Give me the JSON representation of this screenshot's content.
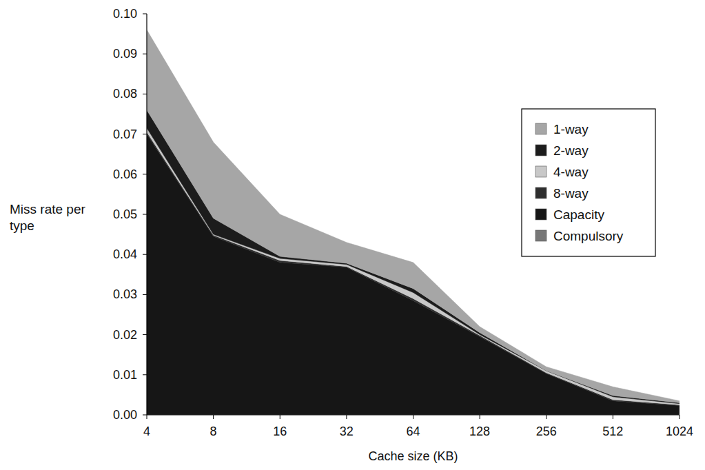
{
  "chart_data": {
    "type": "area",
    "stacked": true,
    "x_label": "Cache size (KB)",
    "y_label": "Miss rate per type",
    "categories": [
      "4",
      "8",
      "16",
      "32",
      "64",
      "128",
      "256",
      "512",
      "1024"
    ],
    "series": [
      {
        "name": "1-way",
        "color": "#a6a6a6",
        "values": [
          0.02,
          0.019,
          0.0105,
          0.0052,
          0.0065,
          0.0015,
          0.001,
          0.0022,
          0.0005
        ]
      },
      {
        "name": "2-way",
        "color": "#1c1c1c",
        "values": [
          0.0045,
          0.004,
          0.0005,
          0.0003,
          0.001,
          0.0005,
          0.0,
          0.0003,
          0.0002
        ]
      },
      {
        "name": "4-way",
        "color": "#c8c8c8",
        "values": [
          0.001,
          0.0002,
          0.0005,
          0.0005,
          0.0015,
          0.0002,
          0.0005,
          0.0007,
          0.0003
        ]
      },
      {
        "name": "8-way",
        "color": "#2e2e2e",
        "values": [
          0.0005,
          0.0003,
          0.0005,
          0.0002,
          0.0005,
          0.0003,
          0.0002,
          0.0003,
          0.0002
        ]
      },
      {
        "name": "Capacity",
        "color": "#161616",
        "values": [
          0.0699,
          0.0444,
          0.0379,
          0.0367,
          0.0284,
          0.0194,
          0.0102,
          0.0034,
          0.0022
        ]
      },
      {
        "name": "Compulsory",
        "color": "#777777",
        "values": [
          0.0001,
          0.0001,
          0.0001,
          0.0001,
          0.0001,
          0.0001,
          0.0001,
          0.0001,
          0.0001
        ]
      }
    ],
    "ylim": [
      0,
      0.1
    ],
    "yticks": [
      {
        "value": 0,
        "label": "0.00"
      },
      {
        "value": 0.01,
        "label": "0.01"
      },
      {
        "value": 0.02,
        "label": "0.02"
      },
      {
        "value": 0.03,
        "label": "0.03"
      },
      {
        "value": 0.04,
        "label": "0.04"
      },
      {
        "value": 0.05,
        "label": "0.05"
      },
      {
        "value": 0.06,
        "label": "0.06"
      },
      {
        "value": 0.07,
        "label": "0.07"
      },
      {
        "value": 0.08,
        "label": "0.08"
      },
      {
        "value": 0.09,
        "label": "0.09"
      },
      {
        "value": 0.1,
        "label": "0.10"
      }
    ],
    "legend": "right",
    "grid": false
  }
}
